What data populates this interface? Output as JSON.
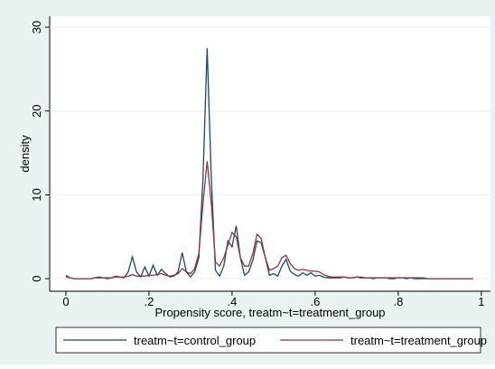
{
  "chart_data": {
    "type": "line",
    "xlabel": "Propensity score, treatm~t=treatment_group",
    "ylabel": "density",
    "x": [
      0,
      0.01,
      0.02,
      0.03,
      0.04,
      0.05,
      0.06,
      0.07,
      0.08,
      0.09,
      0.1,
      0.11,
      0.12,
      0.13,
      0.14,
      0.15,
      0.16,
      0.17,
      0.18,
      0.19,
      0.2,
      0.21,
      0.22,
      0.23,
      0.24,
      0.25,
      0.26,
      0.27,
      0.28,
      0.29,
      0.3,
      0.31,
      0.32,
      0.33,
      0.34,
      0.35,
      0.36,
      0.37,
      0.38,
      0.39,
      0.4,
      0.41,
      0.42,
      0.43,
      0.44,
      0.45,
      0.46,
      0.47,
      0.48,
      0.49,
      0.5,
      0.51,
      0.52,
      0.53,
      0.54,
      0.55,
      0.56,
      0.57,
      0.58,
      0.59,
      0.6,
      0.61,
      0.62,
      0.63,
      0.64,
      0.65,
      0.66,
      0.67,
      0.68,
      0.69,
      0.7,
      0.71,
      0.72,
      0.73,
      0.74,
      0.75,
      0.76,
      0.77,
      0.78,
      0.79,
      0.8,
      0.81,
      0.82,
      0.83,
      0.84,
      0.85,
      0.86,
      0.87,
      0.88,
      0.89,
      0.9,
      0.91,
      0.92,
      0.93,
      0.94,
      0.95,
      0.96,
      0.97,
      0.98
    ],
    "series": [
      {
        "name": "treatm~t=control_group",
        "color": "#1a476f",
        "values": [
          0.4,
          0.1,
          0,
          0,
          0,
          0,
          0,
          0.1,
          0.2,
          0.1,
          0,
          0.1,
          0.3,
          0.2,
          0.1,
          0.8,
          2.6,
          0.8,
          0.2,
          1.4,
          0.3,
          1.6,
          0.4,
          1.1,
          0.6,
          0.2,
          0.3,
          0.8,
          3.1,
          0.8,
          0.2,
          0.8,
          2.5,
          12,
          27.5,
          12,
          1,
          0.3,
          1.5,
          4.5,
          3.8,
          6.3,
          2.5,
          0.4,
          0.8,
          2.2,
          4.5,
          4.3,
          2.5,
          0.4,
          0.6,
          0.3,
          1.5,
          2.3,
          0.9,
          0.5,
          0.3,
          0.7,
          0.4,
          0.7,
          0.3,
          0.4,
          0.2,
          0.1,
          0.1,
          0.1,
          0.1,
          0.2,
          0.1,
          0.1,
          0.2,
          0.1,
          0.1,
          0.1,
          0,
          0.1,
          0.1,
          0.1,
          0,
          0,
          0.1,
          0.1,
          0,
          0.1,
          0,
          0,
          0,
          0,
          0,
          0,
          0,
          0,
          0,
          0,
          0,
          0,
          0,
          0,
          0
        ]
      },
      {
        "name": "treatm~t=treatment_group",
        "color": "#90353b",
        "values": [
          0.2,
          0.1,
          0,
          0,
          0,
          0,
          0,
          0.1,
          0.1,
          0.1,
          0.1,
          0.1,
          0.2,
          0.2,
          0.2,
          0.3,
          0.5,
          0.3,
          0.3,
          0.3,
          0.4,
          0.4,
          0.5,
          0.6,
          0.4,
          0.3,
          0.4,
          0.6,
          1.2,
          0.8,
          0.6,
          1.2,
          3,
          9,
          14,
          9,
          2,
          1.5,
          2.5,
          4,
          5.5,
          5,
          2.5,
          1.5,
          1.5,
          3,
          5.3,
          4.8,
          2.5,
          1,
          1.2,
          1.5,
          2.5,
          2.8,
          1.8,
          1.2,
          1,
          1.1,
          1,
          0.9,
          0.9,
          0.8,
          0.5,
          0.3,
          0.2,
          0.2,
          0.2,
          0.2,
          0.1,
          0.1,
          0.2,
          0.2,
          0.1,
          0.1,
          0.1,
          0.1,
          0.1,
          0.1,
          0.1,
          0.1,
          0.1,
          0.1,
          0.1,
          0.1,
          0.1,
          0.1,
          0.1,
          0,
          0,
          0,
          0,
          0,
          0,
          0,
          0,
          0,
          0,
          0,
          0
        ]
      }
    ],
    "xlim": [
      -0.039,
      1.022
    ],
    "ylim": [
      -1.5,
      31.3
    ],
    "xticks": [
      0,
      {
        "value": 0.2,
        "label": ".2"
      },
      {
        "value": 0.4,
        "label": ".4"
      },
      {
        "value": 0.6,
        "label": ".6"
      },
      {
        "value": 0.8,
        "label": ".8"
      },
      1
    ],
    "yticks": [
      0,
      10,
      20,
      30
    ],
    "grid": true
  }
}
